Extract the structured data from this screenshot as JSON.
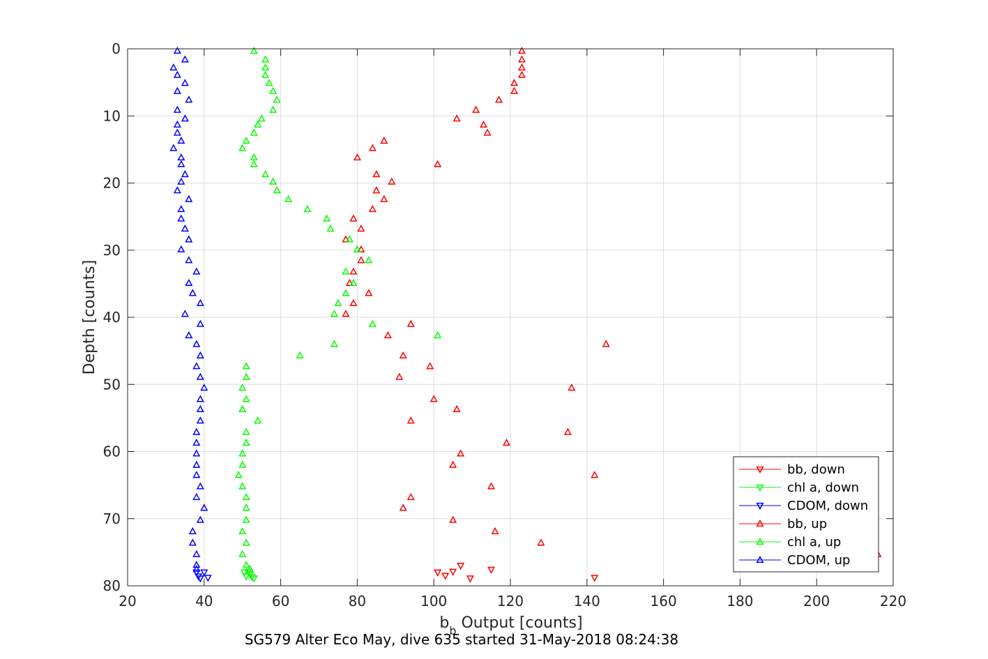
{
  "chart_data": {
    "type": "scatter",
    "title": "",
    "xlabel_main": "b",
    "xlabel_sub": "b",
    "xlabel_rest": " Output [counts]",
    "ylabel": "Depth [counts]",
    "caption": "SG579 Alter Eco May, dive 635 started 31-May-2018 08:24:38",
    "xlim": [
      20,
      220
    ],
    "ylim": [
      0,
      80
    ],
    "y_reversed": true,
    "grid": true,
    "legend_position": "bottom-right",
    "xticks": [
      20,
      40,
      60,
      80,
      100,
      120,
      140,
      160,
      180,
      200,
      220
    ],
    "yticks": [
      0,
      10,
      20,
      30,
      40,
      50,
      60,
      70,
      80
    ],
    "series": [
      {
        "name": "bb, down",
        "color": "#ff0000",
        "marker": "triangle-down",
        "points": [
          [
            101,
            78.0
          ],
          [
            103,
            78.5
          ],
          [
            105,
            77.9
          ],
          [
            107,
            77.0
          ],
          [
            109.5,
            78.9
          ],
          [
            115,
            77.6
          ],
          [
            142,
            78.8
          ]
        ]
      },
      {
        "name": "chl a, down",
        "color": "#00ff00",
        "marker": "triangle-down",
        "points": [
          [
            50.5,
            78.0
          ],
          [
            51,
            78.6
          ],
          [
            51.5,
            77.9
          ],
          [
            52,
            78.3
          ],
          [
            52.5,
            78.7
          ],
          [
            53,
            78.9
          ]
        ]
      },
      {
        "name": "CDOM, down",
        "color": "#0000ff",
        "marker": "triangle-down",
        "points": [
          [
            38,
            78.0
          ],
          [
            38.5,
            78.6
          ],
          [
            39,
            78.9
          ],
          [
            40,
            78.0
          ],
          [
            41,
            78.8
          ]
        ]
      },
      {
        "name": "bb, up",
        "color": "#ff0000",
        "marker": "triangle-up",
        "points": [
          [
            123,
            0.3
          ],
          [
            123,
            1.6
          ],
          [
            123,
            2.8
          ],
          [
            123,
            3.9
          ],
          [
            121,
            5.1
          ],
          [
            121,
            6.3
          ],
          [
            117,
            7.6
          ],
          [
            111,
            9.1
          ],
          [
            106,
            10.4
          ],
          [
            113,
            11.3
          ],
          [
            114,
            12.5
          ],
          [
            87,
            13.7
          ],
          [
            84,
            14.8
          ],
          [
            80,
            16.2
          ],
          [
            101,
            17.2
          ],
          [
            85,
            18.7
          ],
          [
            89,
            19.8
          ],
          [
            85,
            21.1
          ],
          [
            87,
            22.4
          ],
          [
            84,
            23.9
          ],
          [
            79,
            25.3
          ],
          [
            81,
            26.8
          ],
          [
            77,
            28.4
          ],
          [
            81,
            29.9
          ],
          [
            81,
            31.5
          ],
          [
            79,
            33.2
          ],
          [
            78,
            34.9
          ],
          [
            83,
            36.4
          ],
          [
            79,
            37.9
          ],
          [
            77,
            39.5
          ],
          [
            94,
            41.0
          ],
          [
            88,
            42.7
          ],
          [
            145,
            44.0
          ],
          [
            92,
            45.7
          ],
          [
            99,
            47.3
          ],
          [
            91,
            48.9
          ],
          [
            136,
            50.5
          ],
          [
            100,
            52.2
          ],
          [
            106,
            53.7
          ],
          [
            94,
            55.4
          ],
          [
            135,
            57.1
          ],
          [
            119,
            58.7
          ],
          [
            107,
            60.3
          ],
          [
            105,
            62.0
          ],
          [
            142,
            63.5
          ],
          [
            115,
            65.2
          ],
          [
            94,
            66.8
          ],
          [
            92,
            68.4
          ],
          [
            105,
            70.2
          ],
          [
            116,
            71.9
          ],
          [
            128,
            73.6
          ],
          [
            216,
            75.3
          ]
        ]
      },
      {
        "name": "chl a, up",
        "color": "#00ff00",
        "marker": "triangle-up",
        "points": [
          [
            53,
            0.3
          ],
          [
            56,
            1.6
          ],
          [
            56,
            2.8
          ],
          [
            56,
            3.9
          ],
          [
            57,
            5.1
          ],
          [
            58,
            6.3
          ],
          [
            59,
            7.6
          ],
          [
            58,
            9.1
          ],
          [
            55,
            10.4
          ],
          [
            54,
            11.3
          ],
          [
            53,
            12.5
          ],
          [
            51,
            13.7
          ],
          [
            50,
            14.8
          ],
          [
            53,
            16.2
          ],
          [
            53,
            17.2
          ],
          [
            56,
            18.7
          ],
          [
            58,
            19.8
          ],
          [
            59,
            21.1
          ],
          [
            62,
            22.4
          ],
          [
            67,
            23.9
          ],
          [
            72,
            25.3
          ],
          [
            73,
            26.8
          ],
          [
            78,
            28.4
          ],
          [
            80,
            29.9
          ],
          [
            83,
            31.5
          ],
          [
            77,
            33.2
          ],
          [
            79,
            34.9
          ],
          [
            77,
            36.4
          ],
          [
            75,
            37.9
          ],
          [
            74,
            39.5
          ],
          [
            84,
            41.0
          ],
          [
            101,
            42.7
          ],
          [
            74,
            44.0
          ],
          [
            65,
            45.7
          ],
          [
            51,
            47.3
          ],
          [
            51,
            48.9
          ],
          [
            50,
            50.5
          ],
          [
            51,
            52.2
          ],
          [
            50,
            53.7
          ],
          [
            54,
            55.4
          ],
          [
            51,
            57.1
          ],
          [
            51,
            58.7
          ],
          [
            50,
            60.3
          ],
          [
            50,
            62.0
          ],
          [
            49,
            63.5
          ],
          [
            50,
            65.2
          ],
          [
            51,
            66.8
          ],
          [
            51,
            68.4
          ],
          [
            51,
            70.2
          ],
          [
            50,
            71.9
          ],
          [
            51,
            73.6
          ],
          [
            50,
            75.3
          ],
          [
            51,
            76.9
          ],
          [
            52,
            77.5
          ]
        ]
      },
      {
        "name": "CDOM, up",
        "color": "#0000ff",
        "marker": "triangle-up",
        "points": [
          [
            33,
            0.3
          ],
          [
            35,
            1.6
          ],
          [
            32,
            2.8
          ],
          [
            33,
            3.9
          ],
          [
            35,
            5.1
          ],
          [
            33,
            6.3
          ],
          [
            36,
            7.6
          ],
          [
            33,
            9.1
          ],
          [
            35,
            10.4
          ],
          [
            33,
            11.3
          ],
          [
            33,
            12.5
          ],
          [
            34,
            13.7
          ],
          [
            32,
            14.8
          ],
          [
            34,
            16.2
          ],
          [
            34,
            17.2
          ],
          [
            35,
            18.7
          ],
          [
            34,
            19.8
          ],
          [
            33,
            21.1
          ],
          [
            36,
            22.4
          ],
          [
            34,
            23.9
          ],
          [
            34,
            25.3
          ],
          [
            35,
            26.8
          ],
          [
            36,
            28.4
          ],
          [
            34,
            29.9
          ],
          [
            36,
            31.5
          ],
          [
            38,
            33.2
          ],
          [
            36,
            34.9
          ],
          [
            37,
            36.4
          ],
          [
            39,
            37.9
          ],
          [
            35,
            39.5
          ],
          [
            39,
            41.0
          ],
          [
            36,
            42.7
          ],
          [
            38,
            44.0
          ],
          [
            39,
            45.7
          ],
          [
            38,
            47.3
          ],
          [
            39,
            48.9
          ],
          [
            40,
            50.5
          ],
          [
            39,
            52.2
          ],
          [
            39,
            53.7
          ],
          [
            39,
            55.4
          ],
          [
            38,
            57.1
          ],
          [
            38,
            58.7
          ],
          [
            38,
            60.3
          ],
          [
            38,
            62.0
          ],
          [
            38,
            63.5
          ],
          [
            39,
            65.2
          ],
          [
            38,
            66.8
          ],
          [
            40,
            68.4
          ],
          [
            39,
            70.2
          ],
          [
            37,
            71.9
          ],
          [
            37,
            73.6
          ],
          [
            38,
            75.3
          ],
          [
            38,
            76.9
          ],
          [
            38,
            77.5
          ]
        ]
      }
    ]
  }
}
